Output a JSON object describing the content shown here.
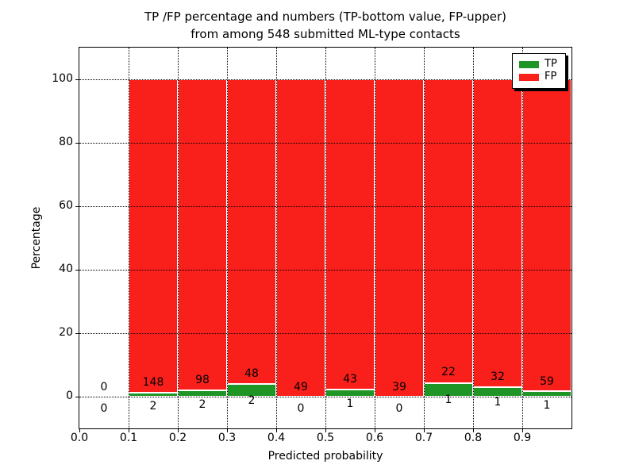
{
  "title": {
    "line1": "TP /FP percentage and numbers (TP-bottom value, FP-upper)",
    "line2": "from among 548 submitted ML-type contacts"
  },
  "axes": {
    "x_label": "Predicted probability",
    "y_label": "Percentage"
  },
  "legend": {
    "items": [
      {
        "label": "TP"
      },
      {
        "label": "FP"
      }
    ]
  },
  "chart_data": {
    "type": "bar",
    "subtype": "stacked-percentage-histogram",
    "title": "TP /FP percentage and numbers (TP-bottom value, FP-upper) from among 548 submitted ML-type contacts",
    "xlabel": "Predicted probability",
    "ylabel": "Percentage",
    "total_contacts": 548,
    "xlim": [
      0.0,
      1.0
    ],
    "ylim": [
      -10,
      110
    ],
    "x_ticks": [
      0.0,
      0.1,
      0.2,
      0.3,
      0.4,
      0.5,
      0.6,
      0.7,
      0.8,
      0.9
    ],
    "x_tick_labels": [
      "0.0",
      "0.1",
      "0.2",
      "0.3",
      "0.4",
      "0.5",
      "0.6",
      "0.7",
      "0.8",
      "0.9"
    ],
    "y_ticks": [
      0,
      20,
      40,
      60,
      80,
      100
    ],
    "grid": "dotted black, drawn over bars",
    "legend_position": "upper right",
    "bar_edge_color": "#ffffff",
    "bin_width": 0.1,
    "bin_starts": [
      0.0,
      0.1,
      0.2,
      0.3,
      0.4,
      0.5,
      0.6,
      0.7,
      0.8,
      0.9
    ],
    "series": [
      {
        "name": "TP",
        "color": "#1f9526",
        "position": "bottom",
        "counts": [
          0,
          2,
          2,
          2,
          0,
          1,
          0,
          1,
          1,
          1
        ]
      },
      {
        "name": "FP",
        "color": "#f91f1b",
        "position": "top",
        "counts": [
          0,
          148,
          98,
          48,
          49,
          43,
          39,
          22,
          32,
          59
        ]
      }
    ]
  }
}
